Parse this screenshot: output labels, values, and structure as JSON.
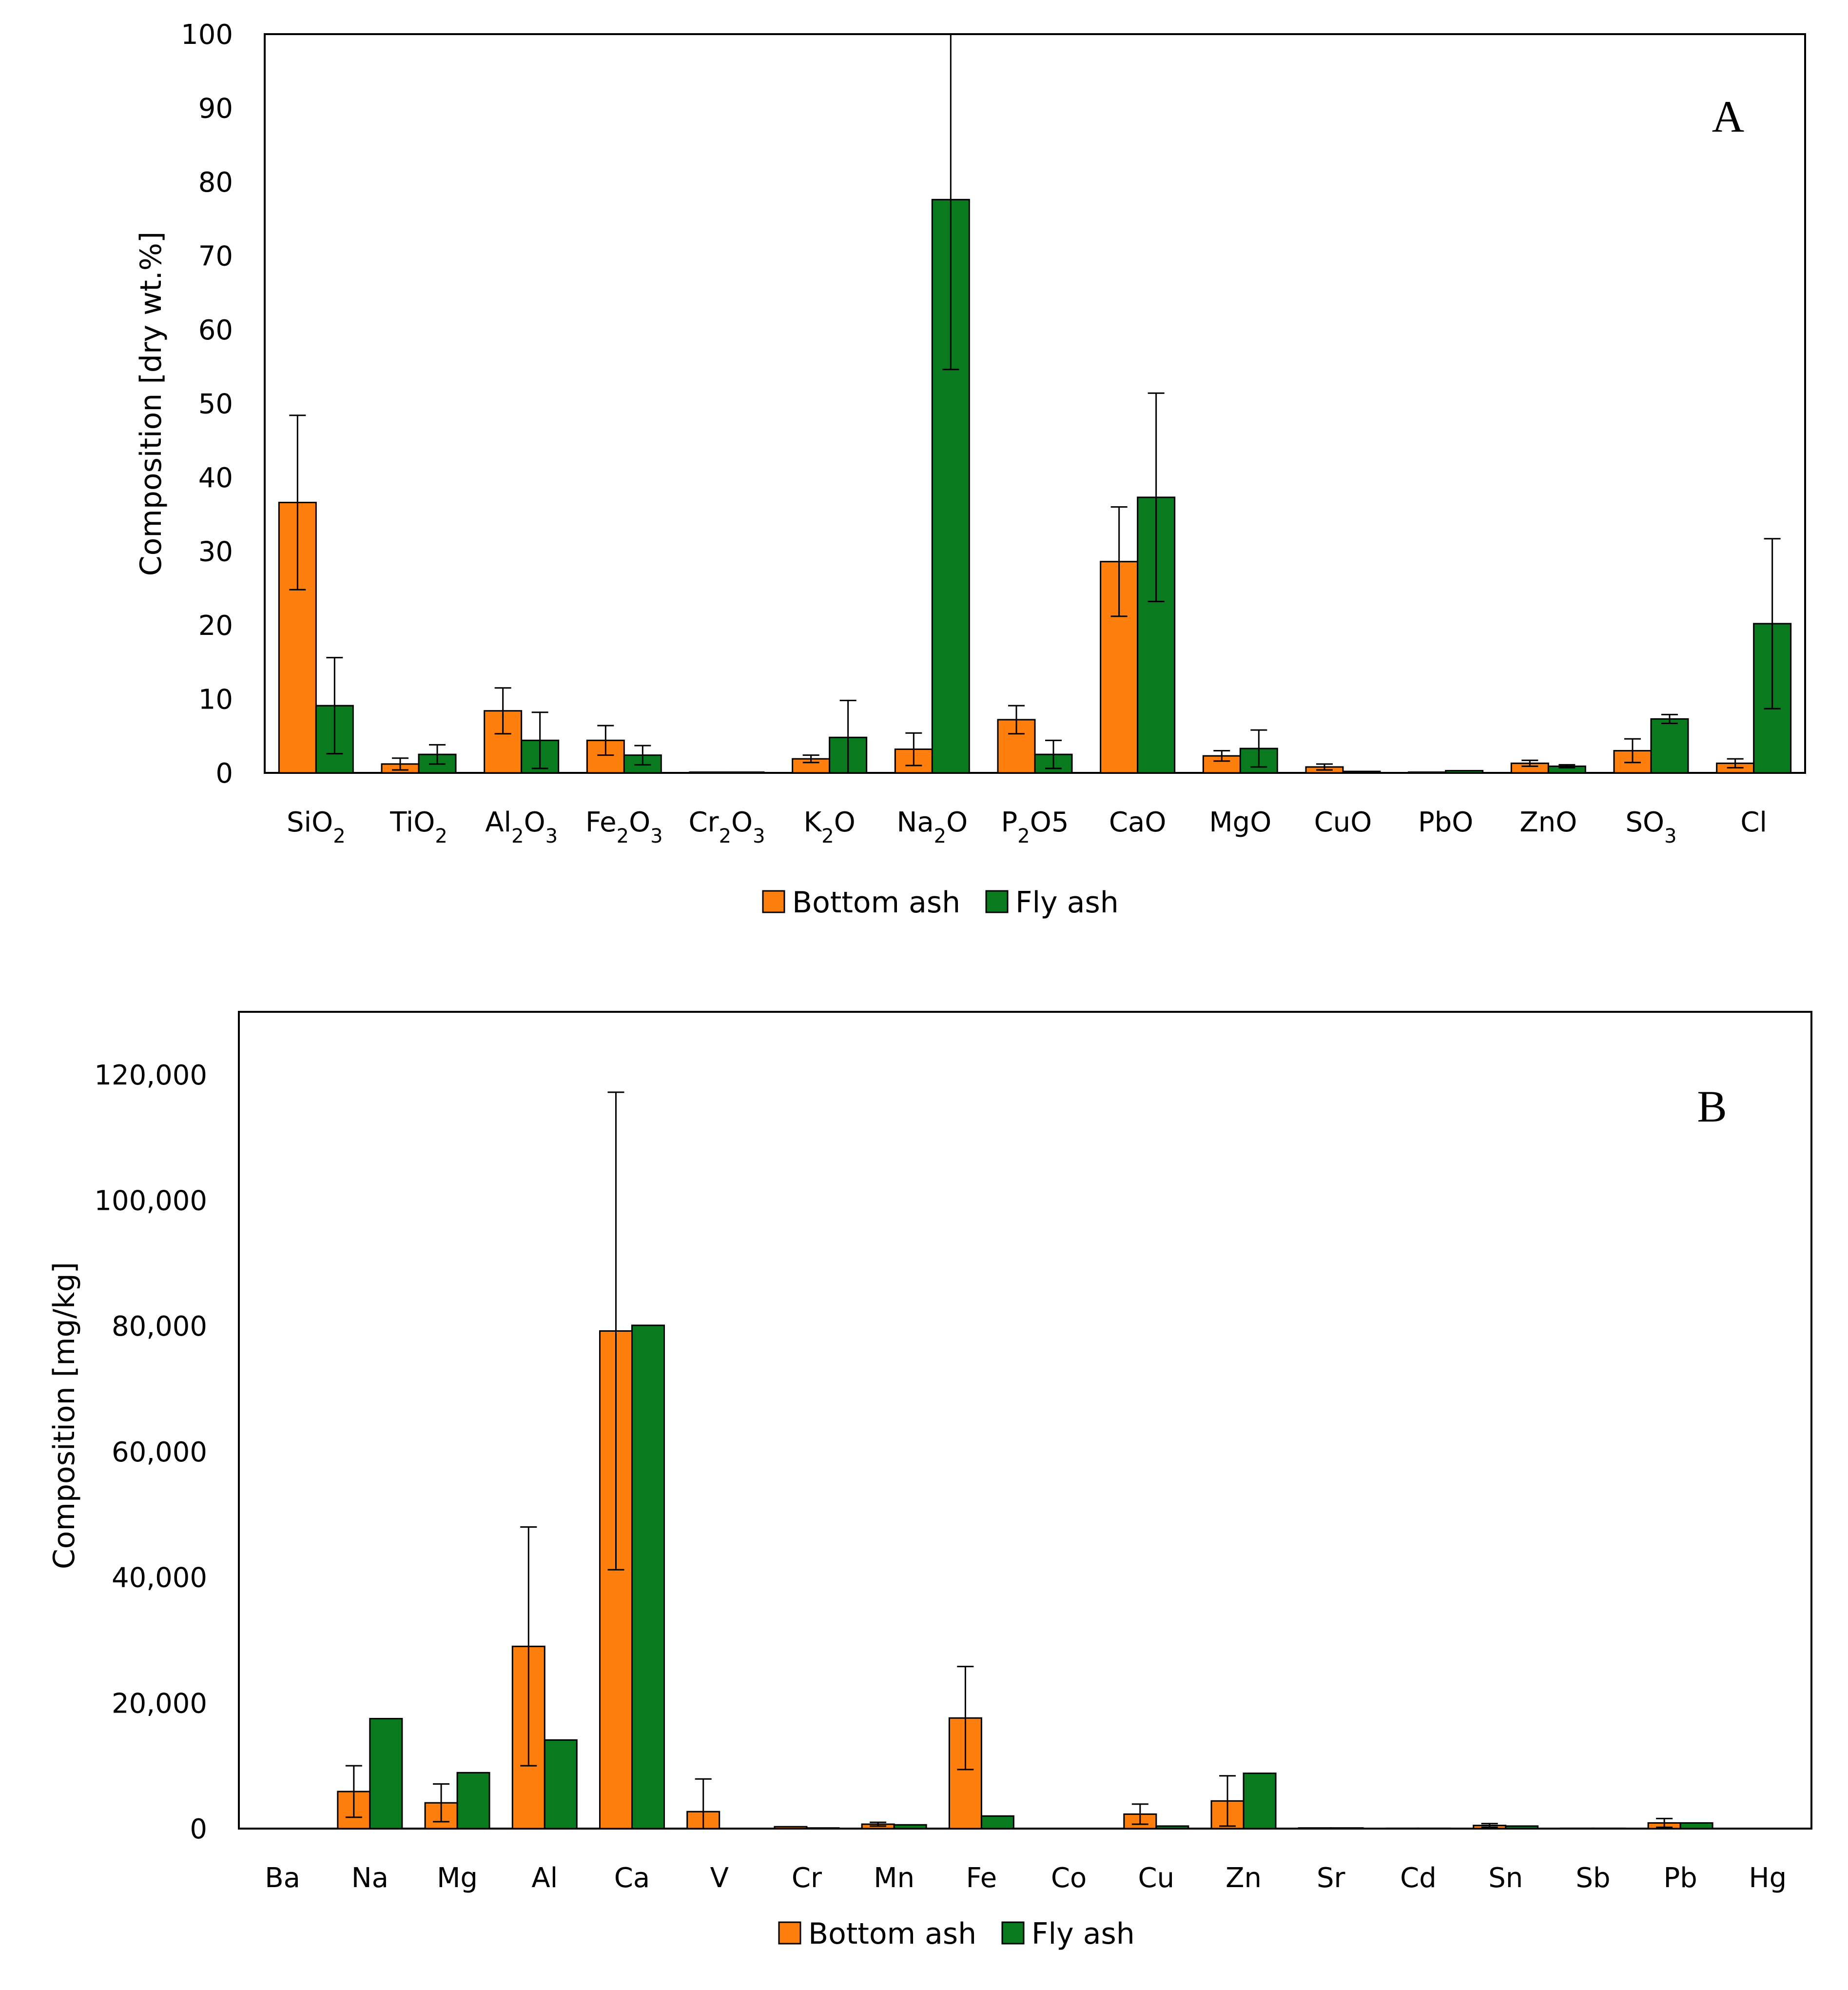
{
  "colors": {
    "bottom_ash": "#ff7f0e",
    "fly_ash": "#0a7a1e",
    "outline": "#000000"
  },
  "chart_data": [
    {
      "type": "bar",
      "panel_label": "A",
      "ylabel": "Composition [dry wt.%]",
      "xlabel": "",
      "ylim": [
        0,
        100
      ],
      "yticks": [
        0,
        10,
        20,
        30,
        40,
        50,
        60,
        70,
        80,
        90,
        100
      ],
      "ytick_labels": [
        "0",
        "10",
        "20",
        "30",
        "40",
        "50",
        "60",
        "70",
        "80",
        "90",
        "100"
      ],
      "categories": [
        {
          "base": "SiO",
          "sub": "2",
          "tail": ""
        },
        {
          "base": "TiO",
          "sub": "2",
          "tail": ""
        },
        {
          "base": "Al",
          "sub": "2",
          "tail": "O",
          "sub2": "3"
        },
        {
          "base": "Fe",
          "sub": "2",
          "tail": "O",
          "sub2": "3"
        },
        {
          "base": "Cr",
          "sub": "2",
          "tail": "O",
          "sub2": "3"
        },
        {
          "base": "K",
          "sub": "2",
          "tail": "O"
        },
        {
          "base": "Na",
          "sub": "2",
          "tail": "O"
        },
        {
          "base": "P",
          "sub": "2",
          "tail": "O5"
        },
        {
          "base": "CaO"
        },
        {
          "base": "MgO"
        },
        {
          "base": "CuO"
        },
        {
          "base": "PbO"
        },
        {
          "base": "ZnO"
        },
        {
          "base": "SO",
          "sub": "3"
        },
        {
          "base": "Cl"
        }
      ],
      "category_names": [
        "SiO2",
        "TiO2",
        "Al2O3",
        "Fe2O3",
        "Cr2O3",
        "K2O",
        "Na2O",
        "P2O5",
        "CaO",
        "MgO",
        "CuO",
        "PbO",
        "ZnO",
        "SO3",
        "Cl"
      ],
      "series": [
        {
          "name": "Bottom ash",
          "color_key": "bottom_ash",
          "values": [
            36.6,
            1.2,
            8.4,
            4.4,
            0.1,
            1.9,
            3.2,
            7.2,
            28.6,
            2.3,
            0.8,
            0.1,
            1.3,
            3.0,
            1.3
          ],
          "errors": [
            11.8,
            0.8,
            3.1,
            2.0,
            0.0,
            0.5,
            2.2,
            1.9,
            7.4,
            0.7,
            0.4,
            0.0,
            0.4,
            1.6,
            0.6
          ]
        },
        {
          "name": "Fly ash",
          "color_key": "fly_ash",
          "values": [
            9.1,
            2.5,
            4.4,
            2.4,
            0.1,
            4.8,
            77.6,
            2.5,
            37.3,
            3.3,
            0.2,
            0.3,
            0.9,
            7.3,
            20.2
          ],
          "errors": [
            6.5,
            1.3,
            3.8,
            1.3,
            0.0,
            5.0,
            23.0,
            1.9,
            14.1,
            2.5,
            0.0,
            0.0,
            0.2,
            0.6,
            11.5
          ]
        }
      ],
      "legend": [
        "Bottom ash",
        "Fly ash"
      ],
      "legend_position": "bottom-center"
    },
    {
      "type": "bar",
      "panel_label": "B",
      "ylabel": "Composition [mg/kg]",
      "xlabel": "",
      "ylim": [
        0,
        130000
      ],
      "yticks": [
        0,
        20000,
        40000,
        60000,
        80000,
        100000,
        120000
      ],
      "ytick_labels": [
        "0",
        "20,000",
        "40,000",
        "60,000",
        "80,000",
        "100,000",
        "120,000"
      ],
      "categories": [
        {
          "base": "Ba"
        },
        {
          "base": "Na"
        },
        {
          "base": "Mg"
        },
        {
          "base": "Al"
        },
        {
          "base": "Ca"
        },
        {
          "base": "V"
        },
        {
          "base": "Cr"
        },
        {
          "base": "Mn"
        },
        {
          "base": "Fe"
        },
        {
          "base": "Co"
        },
        {
          "base": "Cu"
        },
        {
          "base": "Zn"
        },
        {
          "base": "Sr"
        },
        {
          "base": "Cd"
        },
        {
          "base": "Sn"
        },
        {
          "base": "Sb"
        },
        {
          "base": "Pb"
        },
        {
          "base": "Hg"
        }
      ],
      "category_names": [
        "Ba",
        "Na",
        "Mg",
        "Al",
        "Ca",
        "V",
        "Cr",
        "Mn",
        "Fe",
        "Co",
        "Cu",
        "Zn",
        "Sr",
        "Cd",
        "Sn",
        "Sb",
        "Pb",
        "Hg"
      ],
      "series": [
        {
          "name": "Bottom ash",
          "color_key": "bottom_ash",
          "values": [
            0,
            5900,
            4100,
            29000,
            79200,
            2700,
            300,
            700,
            17600,
            0,
            2300,
            4400,
            100,
            50,
            500,
            50,
            900,
            0
          ],
          "errors": [
            0,
            4100,
            3000,
            19000,
            38000,
            5200,
            0,
            300,
            8200,
            0,
            1600,
            4000,
            0,
            0,
            300,
            0,
            700,
            0
          ]
        },
        {
          "name": "Fly ash",
          "color_key": "fly_ash",
          "values": [
            0,
            17500,
            8900,
            14100,
            80100,
            0,
            100,
            600,
            2000,
            0,
            400,
            8800,
            100,
            50,
            400,
            50,
            900,
            0
          ],
          "errors": [
            0,
            0,
            0,
            0,
            0,
            0,
            0,
            0,
            0,
            0,
            0,
            0,
            0,
            0,
            0,
            0,
            0,
            0
          ]
        }
      ],
      "legend": [
        "Bottom ash",
        "Fly ash"
      ],
      "legend_position": "bottom-center"
    }
  ]
}
